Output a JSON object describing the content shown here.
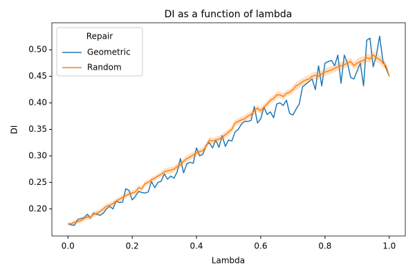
{
  "chart_data": {
    "type": "line",
    "title": "DI as a function of lambda",
    "xlabel": "Lambda",
    "ylabel": "DI",
    "legend_title": "Repair",
    "legend_loc": "upper left",
    "x": [
      0,
      0.01,
      0.02,
      0.03,
      0.04,
      0.05,
      0.06,
      0.07,
      0.08,
      0.09,
      0.1,
      0.11,
      0.12,
      0.13,
      0.14,
      0.15,
      0.16,
      0.17,
      0.18,
      0.19,
      0.2,
      0.21,
      0.22,
      0.23,
      0.24,
      0.25,
      0.26,
      0.27,
      0.28,
      0.29,
      0.3,
      0.31,
      0.32,
      0.33,
      0.34,
      0.35,
      0.36,
      0.37,
      0.38,
      0.39,
      0.4,
      0.41,
      0.42,
      0.43,
      0.44,
      0.45,
      0.46,
      0.47,
      0.48,
      0.49,
      0.5,
      0.51,
      0.52,
      0.53,
      0.54,
      0.55,
      0.56,
      0.57,
      0.58,
      0.59,
      0.6,
      0.61,
      0.62,
      0.63,
      0.64,
      0.65,
      0.66,
      0.67,
      0.68,
      0.69,
      0.7,
      0.71,
      0.72,
      0.73,
      0.74,
      0.75,
      0.76,
      0.77,
      0.78,
      0.79,
      0.8,
      0.81,
      0.82,
      0.83,
      0.84,
      0.85,
      0.86,
      0.87,
      0.88,
      0.89,
      0.9,
      0.91,
      0.92,
      0.93,
      0.94,
      0.95,
      0.96,
      0.97,
      0.98,
      0.99,
      1
    ],
    "series": [
      {
        "name": "Geometric",
        "color": "#1f77b4",
        "values": [
          0.172,
          0.17,
          0.169,
          0.18,
          0.182,
          0.183,
          0.19,
          0.183,
          0.192,
          0.19,
          0.188,
          0.192,
          0.2,
          0.205,
          0.2,
          0.215,
          0.212,
          0.213,
          0.238,
          0.235,
          0.217,
          0.224,
          0.233,
          0.231,
          0.23,
          0.232,
          0.252,
          0.24,
          0.25,
          0.252,
          0.266,
          0.256,
          0.262,
          0.258,
          0.27,
          0.295,
          0.268,
          0.285,
          0.288,
          0.286,
          0.315,
          0.3,
          0.303,
          0.32,
          0.325,
          0.315,
          0.33,
          0.316,
          0.338,
          0.318,
          0.33,
          0.328,
          0.345,
          0.35,
          0.36,
          0.365,
          0.365,
          0.367,
          0.393,
          0.362,
          0.37,
          0.392,
          0.378,
          0.383,
          0.372,
          0.398,
          0.4,
          0.395,
          0.405,
          0.38,
          0.377,
          0.388,
          0.398,
          0.43,
          0.435,
          0.44,
          0.445,
          0.425,
          0.47,
          0.432,
          0.475,
          0.478,
          0.48,
          0.47,
          0.49,
          0.437,
          0.49,
          0.475,
          0.448,
          0.445,
          0.46,
          0.475,
          0.432,
          0.518,
          0.522,
          0.468,
          0.49,
          0.526,
          0.48,
          0.465,
          0.45
        ]
      },
      {
        "name": "Random",
        "color": "#ff7f0e",
        "values": [
          0.172,
          0.172,
          0.175,
          0.176,
          0.178,
          0.182,
          0.185,
          0.184,
          0.19,
          0.192,
          0.195,
          0.2,
          0.205,
          0.207,
          0.21,
          0.215,
          0.218,
          0.222,
          0.225,
          0.228,
          0.23,
          0.232,
          0.24,
          0.238,
          0.248,
          0.25,
          0.255,
          0.258,
          0.262,
          0.265,
          0.27,
          0.272,
          0.273,
          0.275,
          0.28,
          0.283,
          0.29,
          0.295,
          0.298,
          0.302,
          0.305,
          0.308,
          0.31,
          0.318,
          0.33,
          0.328,
          0.33,
          0.332,
          0.335,
          0.34,
          0.345,
          0.35,
          0.362,
          0.365,
          0.368,
          0.37,
          0.375,
          0.378,
          0.385,
          0.39,
          0.385,
          0.392,
          0.398,
          0.405,
          0.408,
          0.415,
          0.415,
          0.412,
          0.418,
          0.42,
          0.425,
          0.432,
          0.435,
          0.44,
          0.443,
          0.445,
          0.45,
          0.452,
          0.45,
          0.455,
          0.458,
          0.46,
          0.462,
          0.465,
          0.468,
          0.47,
          0.472,
          0.475,
          0.478,
          0.47,
          0.475,
          0.478,
          0.48,
          0.485,
          0.483,
          0.49,
          0.485,
          0.482,
          0.475,
          0.47,
          0.45
        ],
        "error": [
          0.002,
          0.003,
          0.004,
          0.004,
          0.005,
          0.005,
          0.005,
          0.005,
          0.005,
          0.005,
          0.005,
          0.005,
          0.005,
          0.005,
          0.005,
          0.005,
          0.005,
          0.005,
          0.005,
          0.005,
          0.005,
          0.005,
          0.005,
          0.005,
          0.005,
          0.005,
          0.005,
          0.005,
          0.005,
          0.005,
          0.006,
          0.006,
          0.006,
          0.006,
          0.006,
          0.006,
          0.006,
          0.006,
          0.006,
          0.006,
          0.006,
          0.006,
          0.006,
          0.006,
          0.006,
          0.006,
          0.006,
          0.006,
          0.006,
          0.006,
          0.006,
          0.006,
          0.006,
          0.006,
          0.006,
          0.006,
          0.006,
          0.006,
          0.006,
          0.006,
          0.006,
          0.006,
          0.006,
          0.006,
          0.006,
          0.006,
          0.006,
          0.006,
          0.006,
          0.006,
          0.007,
          0.007,
          0.007,
          0.007,
          0.007,
          0.007,
          0.007,
          0.007,
          0.007,
          0.007,
          0.007,
          0.007,
          0.007,
          0.007,
          0.007,
          0.007,
          0.007,
          0.007,
          0.007,
          0.007,
          0.008,
          0.008,
          0.008,
          0.008,
          0.008,
          0.008,
          0.008,
          0.008,
          0.008,
          0.006,
          0.002
        ]
      }
    ],
    "xlim": [
      -0.05,
      1.05
    ],
    "xticks": [
      {
        "value": 0,
        "label": "0.0"
      },
      {
        "value": 0.2,
        "label": "0.2"
      },
      {
        "value": 0.4,
        "label": "0.4"
      },
      {
        "value": 0.6,
        "label": "0.6"
      },
      {
        "value": 0.8,
        "label": "0.8"
      },
      {
        "value": 1,
        "label": "1.0"
      }
    ],
    "ylim": [
      0.149,
      0.551
    ],
    "yticks": [
      {
        "value": 0.2,
        "label": "0.20"
      },
      {
        "value": 0.25,
        "label": "0.25"
      },
      {
        "value": 0.3,
        "label": "0.30"
      },
      {
        "value": 0.35,
        "label": "0.35"
      },
      {
        "value": 0.4,
        "label": "0.40"
      },
      {
        "value": 0.45,
        "label": "0.45"
      },
      {
        "value": 0.5,
        "label": "0.50"
      }
    ],
    "grid": false
  }
}
